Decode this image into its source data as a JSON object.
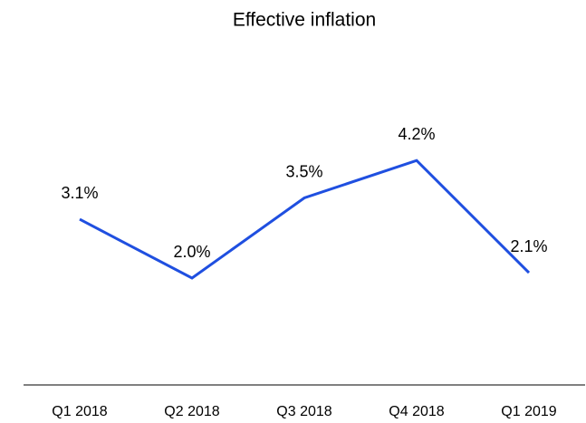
{
  "chart_data": {
    "type": "line",
    "title": "Effective inflation",
    "categories": [
      "Q1 2018",
      "Q2 2018",
      "Q3 2018",
      "Q4 2018",
      "Q1 2019"
    ],
    "values": [
      3.1,
      2.0,
      3.5,
      4.2,
      2.1
    ],
    "value_labels": [
      "3.1%",
      "2.0%",
      "3.5%",
      "4.2%",
      "2.1%"
    ],
    "color": "#1f4fe0",
    "ylim": [
      0,
      6
    ]
  }
}
